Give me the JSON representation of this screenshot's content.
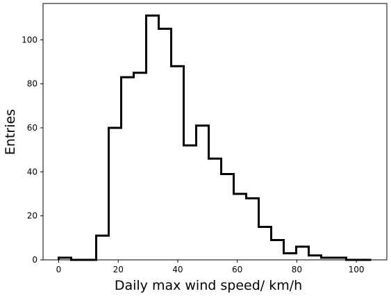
{
  "chart_data": {
    "type": "histogram",
    "title": "",
    "xlabel": "Daily max wind speed/ km/h",
    "ylabel": "Entries",
    "xlim": [
      -5.25,
      110.25
    ],
    "ylim": [
      0,
      116.5
    ],
    "x_ticks": [
      0,
      20,
      40,
      60,
      80,
      100
    ],
    "y_ticks": [
      0,
      20,
      40,
      60,
      80,
      100
    ],
    "x_tick_labels": [
      "0",
      "20",
      "40",
      "60",
      "80",
      "100"
    ],
    "y_tick_labels": [
      "0",
      "20",
      "40",
      "60",
      "80",
      "100"
    ],
    "bin_edges": [
      0,
      4.2,
      8.4,
      12.6,
      16.8,
      21,
      25.2,
      29.4,
      33.6,
      37.8,
      42,
      46.2,
      50.4,
      54.6,
      58.8,
      63,
      67.2,
      71.4,
      75.6,
      79.8,
      84,
      88.2,
      92.4,
      96.6,
      100.8,
      105
    ],
    "counts": [
      1,
      0,
      0,
      11,
      60,
      83,
      85,
      111,
      105,
      88,
      52,
      61,
      46,
      39,
      30,
      28,
      15,
      9,
      3,
      6,
      2,
      1,
      1,
      0,
      0
    ],
    "histtype": "step",
    "color": "#000000",
    "grid": false,
    "legend": "none"
  }
}
